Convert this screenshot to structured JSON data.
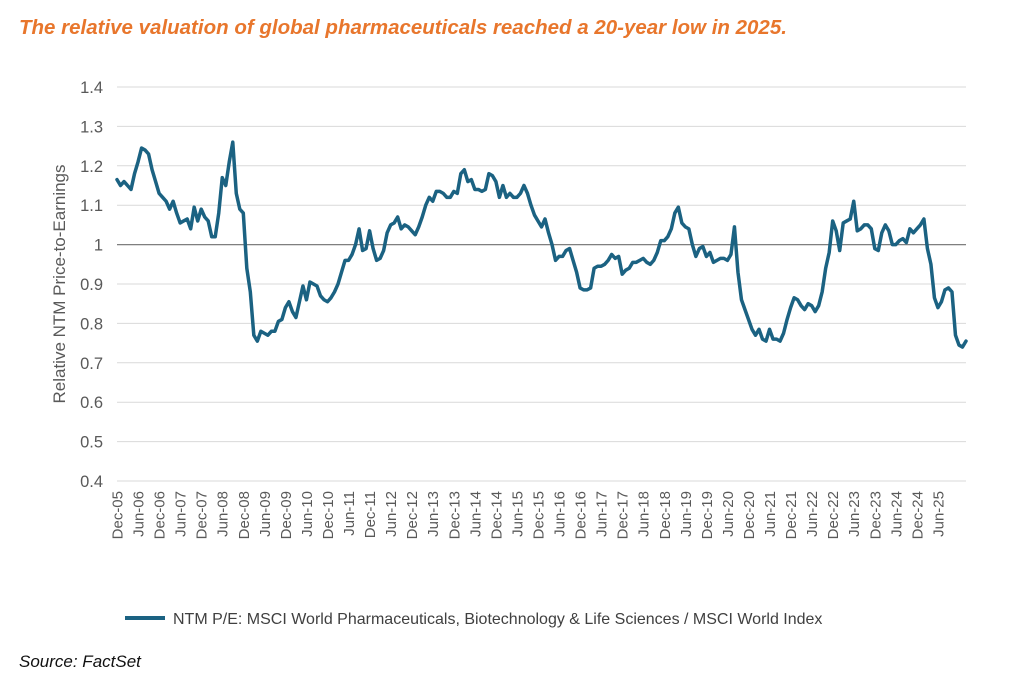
{
  "title": "The relative valuation of global pharmaceuticals reached a 20-year low in 2025.",
  "source": "Source: FactSet",
  "chart_data": {
    "type": "line",
    "ylabel": "Relative NTM Price-to-Earnings",
    "xlabel": "",
    "ylim": [
      0.4,
      1.4
    ],
    "yticks": [
      "0.4",
      "0.5",
      "0.6",
      "0.7",
      "0.8",
      "0.9",
      "1",
      "1.1",
      "1.2",
      "1.3",
      "1.4"
    ],
    "reference_line": 1,
    "grid": true,
    "legend_position": "bottom",
    "x_start": "Dec-05",
    "x_end": "Sep-25",
    "xtick_labels": [
      "Dec-05",
      "Jun-06",
      "Dec-06",
      "Jun-07",
      "Dec-07",
      "Jun-08",
      "Dec-08",
      "Jun-09",
      "Dec-09",
      "Jun-10",
      "Dec-10",
      "Jun-11",
      "Dec-11",
      "Jun-12",
      "Dec-12",
      "Jun-13",
      "Dec-13",
      "Jun-14",
      "Dec-14",
      "Jun-15",
      "Dec-15",
      "Jun-16",
      "Dec-16",
      "Jun-17",
      "Dec-17",
      "Jun-18",
      "Dec-18",
      "Jun-19",
      "Dec-19",
      "Jun-20",
      "Dec-20",
      "Jun-21",
      "Dec-21",
      "Jun-22",
      "Dec-22",
      "Jun-23",
      "Dec-23",
      "Jun-24",
      "Dec-24",
      "Jun-25"
    ],
    "series": [
      {
        "name": "NTM P/E: MSCI World Pharmaceuticals, Biotechnology & Life Sciences / MSCI World Index",
        "color": "#1B6282",
        "values": [
          1.165,
          1.15,
          1.16,
          1.15,
          1.14,
          1.18,
          1.21,
          1.245,
          1.24,
          1.23,
          1.19,
          1.16,
          1.13,
          1.12,
          1.11,
          1.09,
          1.11,
          1.08,
          1.055,
          1.06,
          1.065,
          1.04,
          1.095,
          1.06,
          1.09,
          1.07,
          1.06,
          1.02,
          1.02,
          1.08,
          1.17,
          1.15,
          1.21,
          1.26,
          1.13,
          1.09,
          1.08,
          0.94,
          0.88,
          0.77,
          0.755,
          0.78,
          0.775,
          0.77,
          0.78,
          0.78,
          0.805,
          0.81,
          0.84,
          0.855,
          0.83,
          0.815,
          0.855,
          0.895,
          0.86,
          0.905,
          0.9,
          0.895,
          0.87,
          0.86,
          0.855,
          0.865,
          0.88,
          0.9,
          0.93,
          0.96,
          0.96,
          0.975,
          1.0,
          1.04,
          0.985,
          0.99,
          1.035,
          0.99,
          0.96,
          0.965,
          0.985,
          1.03,
          1.05,
          1.055,
          1.07,
          1.04,
          1.05,
          1.045,
          1.035,
          1.025,
          1.045,
          1.07,
          1.1,
          1.12,
          1.11,
          1.135,
          1.135,
          1.13,
          1.12,
          1.12,
          1.135,
          1.13,
          1.18,
          1.19,
          1.16,
          1.165,
          1.14,
          1.14,
          1.135,
          1.14,
          1.18,
          1.175,
          1.16,
          1.12,
          1.15,
          1.12,
          1.13,
          1.12,
          1.12,
          1.13,
          1.15,
          1.13,
          1.1,
          1.075,
          1.06,
          1.045,
          1.065,
          1.03,
          1.0,
          0.96,
          0.97,
          0.97,
          0.985,
          0.99,
          0.96,
          0.93,
          0.89,
          0.885,
          0.885,
          0.89,
          0.94,
          0.945,
          0.945,
          0.95,
          0.96,
          0.975,
          0.965,
          0.97,
          0.925,
          0.935,
          0.94,
          0.955,
          0.955,
          0.96,
          0.965,
          0.955,
          0.95,
          0.96,
          0.98,
          1.01,
          1.01,
          1.02,
          1.04,
          1.08,
          1.095,
          1.055,
          1.045,
          1.04,
          1.0,
          0.97,
          0.99,
          0.995,
          0.97,
          0.98,
          0.955,
          0.96,
          0.965,
          0.965,
          0.96,
          0.975,
          1.045,
          0.93,
          0.86,
          0.835,
          0.81,
          0.785,
          0.77,
          0.785,
          0.76,
          0.755,
          0.785,
          0.76,
          0.76,
          0.755,
          0.775,
          0.81,
          0.84,
          0.865,
          0.86,
          0.845,
          0.835,
          0.85,
          0.845,
          0.83,
          0.845,
          0.88,
          0.94,
          0.98,
          1.06,
          1.035,
          0.985,
          1.055,
          1.06,
          1.065,
          1.11,
          1.035,
          1.04,
          1.05,
          1.05,
          1.04,
          0.99,
          0.985,
          1.03,
          1.05,
          1.035,
          1.0,
          1.0,
          1.01,
          1.015,
          1.005,
          1.04,
          1.03,
          1.04,
          1.05,
          1.065,
          0.99,
          0.95,
          0.865,
          0.84,
          0.855,
          0.885,
          0.89,
          0.88,
          0.77,
          0.745,
          0.74,
          0.755
        ]
      }
    ]
  }
}
